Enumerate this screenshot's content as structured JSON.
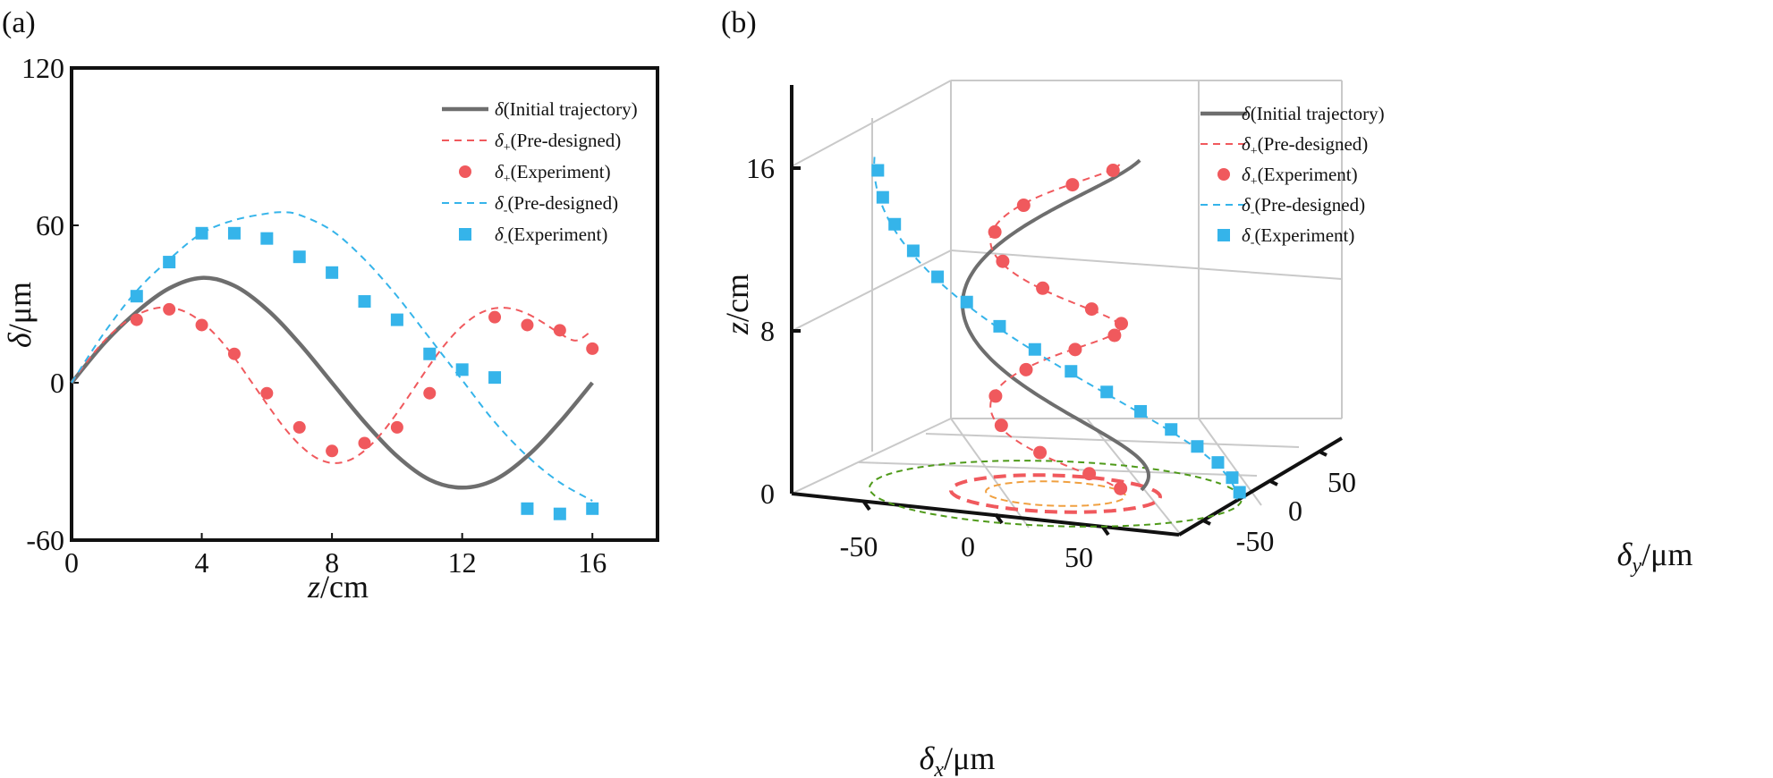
{
  "panel_labels": {
    "a": "(a)",
    "b": "(b)"
  },
  "colors": {
    "initial": "#6e6e6e",
    "plus": "#f0595d",
    "minus": "#35b4ea",
    "ring_outer": "#4f9a1a",
    "ring_inner": "#f0a040"
  },
  "chart_data": [
    {
      "type": "line",
      "panel": "(a)",
      "xlabel_symbol": "z",
      "xlabel_unit": "/cm",
      "ylabel_symbol": "δ",
      "ylabel_unit": "/μm",
      "xlim": [
        0,
        18
      ],
      "ylim": [
        -60,
        120
      ],
      "x_ticks": [
        "0",
        "4",
        "8",
        "12",
        "16"
      ],
      "y_ticks": [
        "-60",
        "0",
        "60",
        "120"
      ],
      "grid": false,
      "legend_position": "top-right",
      "series": [
        {
          "name": "δ(Initial trajectory)",
          "symbol": "δ",
          "sub": "",
          "text": "(Initial trajectory)",
          "style": "solid-line",
          "color": "#6e6e6e",
          "x": [
            0,
            1,
            2,
            3,
            4,
            5,
            6,
            7,
            8,
            9,
            10,
            11,
            12,
            13,
            14,
            15,
            16
          ],
          "y": [
            0,
            15,
            27,
            36,
            40,
            37,
            28,
            15,
            0,
            -15,
            -28,
            -37,
            -40,
            -37,
            -28,
            -15,
            0
          ]
        },
        {
          "name": "δ+(Pre-designed)",
          "symbol": "δ",
          "sub": "+",
          "text": "(Pre-designed)",
          "style": "dashed-line",
          "color": "#f0595d",
          "x": [
            0,
            0.5,
            1,
            1.5,
            2,
            2.5,
            3,
            3.5,
            4,
            4.5,
            5,
            5.5,
            6,
            6.5,
            7,
            7.5,
            8,
            8.5,
            9,
            9.5,
            10,
            10.5,
            11,
            11.5,
            12,
            12.5,
            13,
            13.5,
            14,
            14.5,
            15,
            15.5,
            16
          ],
          "y": [
            0,
            8.5,
            15.9,
            21.7,
            25.8,
            28.2,
            28.7,
            27.0,
            23.1,
            17.2,
            9.6,
            0.8,
            -8.1,
            -16.6,
            -23.6,
            -28.5,
            -30.6,
            -29.7,
            -25.9,
            -19.6,
            -11.5,
            -2.5,
            6.7,
            15.0,
            21.6,
            26.2,
            28.4,
            28.3,
            26.3,
            22.8,
            18.8,
            16.1,
            20.0
          ]
        },
        {
          "name": "δ+(Experiment)",
          "symbol": "δ",
          "sub": "+",
          "text": "(Experiment)",
          "style": "circle-marker",
          "color": "#f0595d",
          "x": [
            2,
            3,
            4,
            5,
            6,
            7,
            8,
            9,
            10,
            11,
            13,
            14,
            15,
            16
          ],
          "y": [
            24,
            28,
            22,
            11,
            -4,
            -17,
            -26,
            -23,
            -17,
            -4,
            25,
            22,
            20,
            13
          ]
        },
        {
          "name": "δ-(Pre-designed)",
          "symbol": "δ",
          "sub": "-",
          "text": "(Pre-designed)",
          "style": "dashed-line",
          "color": "#35b4ea",
          "x": [
            0,
            1,
            2,
            3,
            4,
            5,
            6,
            6.5,
            7,
            8,
            9,
            10,
            11,
            12,
            13,
            14,
            15,
            16
          ],
          "y": [
            0,
            19,
            35,
            47,
            57,
            62,
            64.5,
            65,
            64,
            58,
            47,
            33,
            17,
            1,
            -15,
            -28,
            -38,
            -45
          ]
        },
        {
          "name": "δ-(Experiment)",
          "symbol": "δ",
          "sub": "-",
          "text": "(Experiment)",
          "style": "square-marker",
          "color": "#35b4ea",
          "x": [
            2,
            3,
            4,
            5,
            6,
            7,
            8,
            9,
            10,
            11,
            12,
            13,
            14,
            15,
            16
          ],
          "y": [
            33,
            46,
            57,
            57,
            55,
            48,
            42,
            31,
            24,
            11,
            5,
            2,
            -48,
            -50,
            -48
          ]
        }
      ]
    },
    {
      "type": "line",
      "panel": "(b)",
      "projection": "3d",
      "xlabel_symbol": "δ",
      "xlabel_sub": "x",
      "xlabel_unit": "/μm",
      "ylabel_symbol": "δ",
      "ylabel_sub": "y",
      "ylabel_unit": "/μm",
      "zlabel_symbol": "z",
      "zlabel_unit": "/cm",
      "x_ticks": [
        "-50",
        "0",
        "50"
      ],
      "y_ticks": [
        "-50",
        "0",
        "50"
      ],
      "z_ticks": [
        "0",
        "8",
        "16"
      ],
      "grid": true,
      "legend_position": "top-right",
      "series": [
        {
          "name": "δ(Initial trajectory)",
          "symbol": "δ",
          "sub": "",
          "text": "(Initial trajectory)",
          "style": "solid-line",
          "color": "#6e6e6e"
        },
        {
          "name": "δ+(Pre-designed)",
          "symbol": "δ",
          "sub": "+",
          "text": "(Pre-designed)",
          "style": "dashed-line",
          "color": "#f0595d"
        },
        {
          "name": "δ+(Experiment)",
          "symbol": "δ",
          "sub": "+",
          "text": "(Experiment)",
          "style": "circle-marker",
          "color": "#f0595d"
        },
        {
          "name": "δ-(Pre-designed)",
          "symbol": "δ",
          "sub": "-",
          "text": "(Pre-designed)",
          "style": "dashed-line",
          "color": "#35b4ea"
        },
        {
          "name": "δ-(Experiment)",
          "symbol": "δ",
          "sub": "-",
          "text": "(Experiment)",
          "style": "square-marker",
          "color": "#35b4ea"
        }
      ]
    }
  ]
}
